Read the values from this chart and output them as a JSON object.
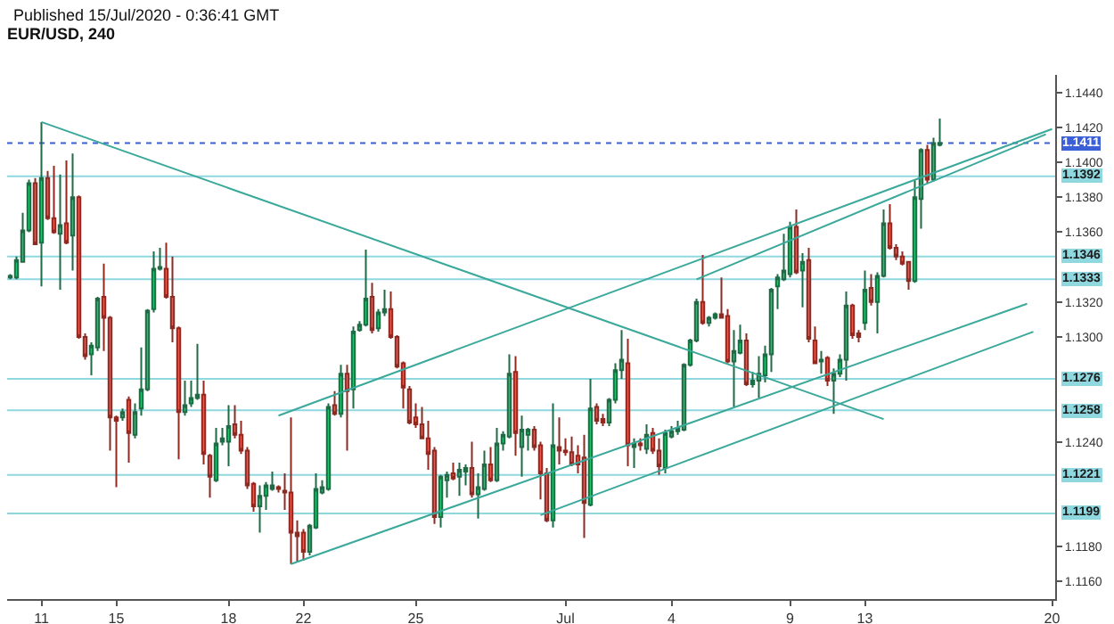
{
  "chart_data": {
    "type": "candlestick",
    "title": "Published 15/Jul/2020 - 0:36:41 GMT",
    "subtitle": "EUR/USD, 240",
    "categories": [
      null,
      null,
      null,
      null,
      null,
      "11",
      null,
      null,
      null,
      null,
      null,
      null,
      null,
      null,
      null,
      null,
      null,
      "15",
      null,
      null,
      null,
      null,
      null,
      null,
      null,
      null,
      null,
      null,
      null,
      null,
      null,
      null,
      null,
      null,
      null,
      "18",
      null,
      null,
      null,
      null,
      null,
      null,
      null,
      null,
      null,
      null,
      null,
      "22",
      null,
      null,
      null,
      null,
      null,
      null,
      null,
      null,
      null,
      null,
      null,
      null,
      null,
      null,
      null,
      null,
      null,
      "25",
      null,
      null,
      null,
      null,
      null,
      null,
      null,
      null,
      null,
      null,
      null,
      null,
      null,
      null,
      null,
      null,
      null,
      null,
      null,
      null,
      null,
      null,
      null,
      "Jul",
      null,
      null,
      null,
      null,
      null,
      null,
      null,
      null,
      null,
      null,
      null,
      null,
      null,
      null,
      null,
      null,
      "4",
      null,
      null,
      null,
      null,
      null,
      null,
      null,
      null,
      null,
      null,
      null,
      null,
      null,
      null,
      null,
      null,
      null,
      null,
      "9",
      null,
      null,
      null,
      null,
      null,
      null,
      null,
      null,
      null,
      null,
      null,
      "13",
      null,
      null,
      null,
      null,
      null,
      null,
      null,
      null,
      null,
      null,
      null,
      null,
      null,
      null,
      null,
      null,
      null,
      null,
      null,
      null,
      null,
      null,
      null,
      null,
      null,
      null,
      null,
      null,
      null,
      "20"
    ],
    "ohlc": [
      [
        1.1334,
        1.1336,
        1.1333,
        1.1335
      ],
      [
        1.1334,
        1.1346,
        1.1333,
        1.1344
      ],
      [
        1.1343,
        1.1371,
        1.1343,
        1.1361
      ],
      [
        1.1361,
        1.139,
        1.136,
        1.1388
      ],
      [
        1.1388,
        1.1391,
        1.1353,
        1.1353
      ],
      [
        1.1354,
        1.1423,
        1.1329,
        1.1391
      ],
      [
        1.1391,
        1.1395,
        1.1367,
        1.1368
      ],
      [
        1.1368,
        1.1398,
        1.1359,
        1.136
      ],
      [
        1.1359,
        1.1393,
        1.1327,
        1.1364
      ],
      [
        1.1365,
        1.1401,
        1.1353,
        1.1354
      ],
      [
        1.1358,
        1.1405,
        1.1338,
        1.138
      ],
      [
        1.138,
        1.1381,
        1.1299,
        1.13
      ],
      [
        1.13,
        1.1302,
        1.1287,
        1.1289
      ],
      [
        1.129,
        1.1297,
        1.1278,
        1.1295
      ],
      [
        1.1294,
        1.1323,
        1.1292,
        1.1322
      ],
      [
        1.1323,
        1.1342,
        1.1292,
        1.1311
      ],
      [
        1.1311,
        1.1312,
        1.1235,
        1.1254
      ],
      [
        1.1254,
        1.1255,
        1.1214,
        1.1252
      ],
      [
        1.1254,
        1.1259,
        1.1252,
        1.1257
      ],
      [
        1.1264,
        1.1266,
        1.1228,
        1.1245
      ],
      [
        1.1244,
        1.1262,
        1.1242,
        1.1257
      ],
      [
        1.1259,
        1.1294,
        1.1255,
        1.127
      ],
      [
        1.127,
        1.1316,
        1.1269,
        1.1315
      ],
      [
        1.1316,
        1.1349,
        1.1314,
        1.1339
      ],
      [
        1.1339,
        1.1351,
        1.1338,
        1.134
      ],
      [
        1.1339,
        1.1354,
        1.1322,
        1.1323
      ],
      [
        1.1323,
        1.1346,
        1.1297,
        1.1305
      ],
      [
        1.1305,
        1.1306,
        1.123,
        1.1257
      ],
      [
        1.1257,
        1.1275,
        1.1255,
        1.1261
      ],
      [
        1.1262,
        1.1275,
        1.126,
        1.1265
      ],
      [
        1.1265,
        1.1296,
        1.1264,
        1.1267
      ],
      [
        1.1267,
        1.1275,
        1.1227,
        1.1233
      ],
      [
        1.1232,
        1.1233,
        1.1208,
        1.122
      ],
      [
        1.1218,
        1.1248,
        1.1217,
        1.1239
      ],
      [
        1.124,
        1.1248,
        1.1238,
        1.1242
      ],
      [
        1.124,
        1.1261,
        1.1226,
        1.1249
      ],
      [
        1.125,
        1.1261,
        1.1242,
        1.1244
      ],
      [
        1.1244,
        1.1252,
        1.1233,
        1.1235
      ],
      [
        1.1235,
        1.1237,
        1.1213,
        1.1215
      ],
      [
        1.1216,
        1.1217,
        1.12,
        1.1203
      ],
      [
        1.1203,
        1.1215,
        1.1188,
        1.1209
      ],
      [
        1.1209,
        1.1217,
        1.1201,
        1.1215
      ],
      [
        1.1213,
        1.1223,
        1.1212,
        1.1215
      ],
      [
        1.1214,
        1.1215,
        1.1211,
        1.1213
      ],
      [
        1.1212,
        1.1222,
        1.1201,
        1.1211
      ],
      [
        1.1211,
        1.1254,
        1.117,
        1.1188
      ],
      [
        1.1188,
        1.1195,
        1.1171,
        1.1186
      ],
      [
        1.1188,
        1.119,
        1.1172,
        1.1177
      ],
      [
        1.1177,
        1.1193,
        1.1175,
        1.1192
      ],
      [
        1.1191,
        1.1222,
        1.119,
        1.1213
      ],
      [
        1.1211,
        1.1218,
        1.121,
        1.1214
      ],
      [
        1.1213,
        1.1262,
        1.1212,
        1.126
      ],
      [
        1.1261,
        1.1269,
        1.1255,
        1.1256
      ],
      [
        1.1256,
        1.1284,
        1.1254,
        1.1279
      ],
      [
        1.1279,
        1.1284,
        1.1235,
        1.1269
      ],
      [
        1.127,
        1.1306,
        1.1259,
        1.1303
      ],
      [
        1.1304,
        1.1309,
        1.1303,
        1.1307
      ],
      [
        1.1307,
        1.135,
        1.1306,
        1.1322
      ],
      [
        1.1323,
        1.1331,
        1.1302,
        1.1304
      ],
      [
        1.1305,
        1.1316,
        1.1303,
        1.1314
      ],
      [
        1.1314,
        1.1327,
        1.1312,
        1.1316
      ],
      [
        1.1316,
        1.1326,
        1.1299,
        1.13
      ],
      [
        1.13,
        1.1301,
        1.1282,
        1.1283
      ],
      [
        1.1285,
        1.1286,
        1.1259,
        1.1271
      ],
      [
        1.127,
        1.1272,
        1.125,
        1.1251
      ],
      [
        1.1254,
        1.1262,
        1.1248,
        1.125
      ],
      [
        1.125,
        1.126,
        1.1242,
        1.1242
      ],
      [
        1.1242,
        1.1252,
        1.1224,
        1.1233
      ],
      [
        1.1235,
        1.1237,
        1.1193,
        1.1197
      ],
      [
        1.1197,
        1.1221,
        1.1191,
        1.122
      ],
      [
        1.1218,
        1.1223,
        1.1208,
        1.1221
      ],
      [
        1.1222,
        1.1228,
        1.1218,
        1.1219
      ],
      [
        1.122,
        1.1228,
        1.1209,
        1.1224
      ],
      [
        1.1223,
        1.1227,
        1.1215,
        1.1225
      ],
      [
        1.1225,
        1.124,
        1.1208,
        1.121
      ],
      [
        1.121,
        1.1222,
        1.1196,
        1.1214
      ],
      [
        1.1213,
        1.1235,
        1.1212,
        1.1227
      ],
      [
        1.1227,
        1.1237,
        1.1217,
        1.1218
      ],
      [
        1.1218,
        1.1248,
        1.1217,
        1.1239
      ],
      [
        1.1239,
        1.1246,
        1.1235,
        1.1244
      ],
      [
        1.1243,
        1.129,
        1.1242,
        1.1279
      ],
      [
        1.128,
        1.1289,
        1.1232,
        1.1245
      ],
      [
        1.1237,
        1.1255,
        1.122,
        1.1247
      ],
      [
        1.1244,
        1.1248,
        1.1235,
        1.1247
      ],
      [
        1.1247,
        1.1249,
        1.1235,
        1.1237
      ],
      [
        1.1238,
        1.124,
        1.1207,
        1.1222
      ],
      [
        1.1222,
        1.1225,
        1.1194,
        1.1195
      ],
      [
        1.1195,
        1.1262,
        1.1191,
        1.1238
      ],
      [
        1.1237,
        1.1254,
        1.1227,
        1.1235
      ],
      [
        1.1235,
        1.1242,
        1.1232,
        1.1234
      ],
      [
        1.1234,
        1.1243,
        1.1226,
        1.1227
      ],
      [
        1.1232,
        1.1238,
        1.1222,
        1.1227
      ],
      [
        1.1231,
        1.1244,
        1.1185,
        1.1205
      ],
      [
        1.1204,
        1.1276,
        1.1203,
        1.1259
      ],
      [
        1.126,
        1.1262,
        1.125,
        1.1252
      ],
      [
        1.1253,
        1.1256,
        1.1249,
        1.1251
      ],
      [
        1.1251,
        1.1265,
        1.1249,
        1.1264
      ],
      [
        1.1264,
        1.1285,
        1.1262,
        1.1281
      ],
      [
        1.1281,
        1.1304,
        1.1276,
        1.1287
      ],
      [
        1.1285,
        1.1299,
        1.1226,
        1.1238
      ],
      [
        1.1237,
        1.1242,
        1.1225,
        1.1239
      ],
      [
        1.1239,
        1.1242,
        1.1235,
        1.1238
      ],
      [
        1.1236,
        1.125,
        1.1233,
        1.1244
      ],
      [
        1.1245,
        1.1248,
        1.1233,
        1.1235
      ],
      [
        1.1235,
        1.1242,
        1.1221,
        1.1226
      ],
      [
        1.1225,
        1.1247,
        1.1222,
        1.1245
      ],
      [
        1.1243,
        1.1249,
        1.1242,
        1.1246
      ],
      [
        1.1246,
        1.1252,
        1.1244,
        1.1248
      ],
      [
        1.1247,
        1.1285,
        1.1246,
        1.1284
      ],
      [
        1.1284,
        1.1299,
        1.1283,
        1.1298
      ],
      [
        1.1298,
        1.1322,
        1.1297,
        1.132
      ],
      [
        1.132,
        1.1347,
        1.1307,
        1.1308
      ],
      [
        1.1308,
        1.1312,
        1.1306,
        1.1311
      ],
      [
        1.1311,
        1.1314,
        1.131,
        1.1313
      ],
      [
        1.1313,
        1.1334,
        1.1311,
        1.1311
      ],
      [
        1.1312,
        1.1316,
        1.1285,
        1.1286
      ],
      [
        1.1286,
        1.1304,
        1.126,
        1.1292
      ],
      [
        1.1291,
        1.1307,
        1.129,
        1.1298
      ],
      [
        1.1298,
        1.1302,
        1.1272,
        1.1273
      ],
      [
        1.1273,
        1.128,
        1.1271,
        1.1275
      ],
      [
        1.1275,
        1.1289,
        1.1265,
        1.1279
      ],
      [
        1.1278,
        1.1295,
        1.1274,
        1.129
      ],
      [
        1.129,
        1.1328,
        1.128,
        1.1327
      ],
      [
        1.1329,
        1.1336,
        1.1316,
        1.1334
      ],
      [
        1.1333,
        1.1359,
        1.1332,
        1.1338
      ],
      [
        1.1336,
        1.1366,
        1.1334,
        1.1363
      ],
      [
        1.1363,
        1.1373,
        1.1336,
        1.1337
      ],
      [
        1.1338,
        1.1348,
        1.1317,
        1.1343
      ],
      [
        1.1344,
        1.1351,
        1.1297,
        1.1299
      ],
      [
        1.1298,
        1.1306,
        1.1285,
        1.1285
      ],
      [
        1.1286,
        1.1292,
        1.1279,
        1.1287
      ],
      [
        1.1288,
        1.1289,
        1.1272,
        1.1275
      ],
      [
        1.1275,
        1.1282,
        1.1256,
        1.1279
      ],
      [
        1.1279,
        1.129,
        1.1277,
        1.1287
      ],
      [
        1.1287,
        1.1326,
        1.1275,
        1.1318
      ],
      [
        1.1318,
        1.1319,
        1.1299,
        1.1301
      ],
      [
        1.1302,
        1.1304,
        1.1297,
        1.13
      ],
      [
        1.1308,
        1.1338,
        1.1304,
        1.1327
      ],
      [
        1.1328,
        1.1336,
        1.1318,
        1.132
      ],
      [
        1.132,
        1.1337,
        1.1302,
        1.1335
      ],
      [
        1.1335,
        1.1373,
        1.1334,
        1.1365
      ],
      [
        1.1365,
        1.1376,
        1.135,
        1.1351
      ],
      [
        1.1351,
        1.1353,
        1.1344,
        1.1346
      ],
      [
        1.1346,
        1.1349,
        1.1341,
        1.1342
      ],
      [
        1.1343,
        1.1343,
        1.1327,
        1.1332
      ],
      [
        1.1332,
        1.139,
        1.1331,
        1.138
      ],
      [
        1.1379,
        1.1408,
        1.1362,
        1.1407
      ],
      [
        1.1407,
        1.141,
        1.1388,
        1.139
      ],
      [
        1.139,
        1.1414,
        1.1389,
        1.1411
      ],
      [
        1.141,
        1.1425,
        1.1409,
        1.1411
      ],
      null,
      null,
      null,
      null,
      null,
      null,
      null,
      null,
      null,
      null,
      null,
      null,
      null,
      null,
      null,
      null,
      null,
      null
    ],
    "series": [
      {
        "type": "line",
        "color": "#3aa89a",
        "values": [
          null,
          null,
          null,
          null,
          null,
          1.1423,
          null,
          null,
          null,
          null,
          null,
          null,
          null,
          null,
          null,
          null,
          null,
          null,
          null,
          null,
          null,
          null,
          null,
          null,
          null,
          null,
          null,
          null,
          null,
          null,
          null,
          null,
          null,
          null,
          null,
          null,
          null,
          null,
          null,
          null,
          null,
          null,
          null,
          null,
          null,
          null,
          null,
          null,
          null,
          null,
          null,
          null,
          null,
          null,
          null,
          null,
          null,
          null,
          null,
          null,
          null,
          null,
          null,
          null,
          null,
          null,
          null,
          null,
          null,
          null,
          null,
          null,
          null,
          null,
          null,
          null,
          null,
          null,
          null,
          null,
          null,
          null,
          null,
          null,
          null,
          null,
          null,
          null,
          null,
          null,
          null,
          null,
          null,
          null,
          null,
          null,
          null,
          null,
          null,
          null,
          null,
          null,
          null,
          null,
          null,
          null,
          null,
          null,
          null,
          null,
          null,
          null,
          null,
          null,
          null,
          null,
          null,
          null,
          null,
          null,
          null,
          null,
          null,
          null,
          null,
          null,
          null,
          null,
          null,
          null,
          null,
          null,
          null,
          null,
          null,
          null,
          null,
          null,
          null,
          null,
          1.1253,
          null,
          null,
          null,
          null,
          null,
          null,
          null,
          null,
          null,
          null,
          null,
          null,
          null,
          null,
          null,
          null,
          null,
          null,
          null,
          null,
          null,
          null,
          null,
          null,
          null,
          null,
          null
        ]
      },
      {
        "type": "line",
        "color": "#3aa89a",
        "values": [
          null,
          null,
          null,
          null,
          null,
          null,
          null,
          null,
          null,
          null,
          null,
          null,
          null,
          null,
          null,
          null,
          null,
          null,
          null,
          null,
          null,
          null,
          null,
          null,
          null,
          null,
          null,
          null,
          null,
          null,
          null,
          null,
          null,
          null,
          null,
          null,
          null,
          null,
          null,
          null,
          null,
          null,
          null,
          1.1255,
          null,
          null,
          null,
          null,
          null,
          null,
          null,
          null,
          null,
          null,
          null,
          null,
          null,
          null,
          null,
          null,
          null,
          null,
          null,
          null,
          null,
          null,
          null,
          null,
          null,
          null,
          null,
          null,
          null,
          null,
          null,
          null,
          null,
          null,
          null,
          null,
          null,
          null,
          null,
          null,
          null,
          null,
          null,
          null,
          null,
          null,
          null,
          null,
          null,
          null,
          null,
          null,
          null,
          null,
          null,
          null,
          null,
          null,
          null,
          null,
          null,
          null,
          null,
          null,
          null,
          null,
          null,
          null,
          null,
          null,
          null,
          null,
          null,
          null,
          null,
          null,
          null,
          null,
          null,
          null,
          null,
          null,
          null,
          null,
          null,
          null,
          null,
          null,
          null,
          null,
          null,
          null,
          null,
          null,
          null,
          null,
          null,
          null,
          null,
          null,
          null,
          null,
          null,
          null,
          null,
          null,
          null,
          null,
          null,
          null,
          null,
          null,
          null,
          null,
          null,
          null,
          null,
          null,
          null,
          null,
          null,
          null,
          null,
          1.1419
        ]
      },
      {
        "type": "line",
        "color": "#3aa89a",
        "values": [
          null,
          null,
          null,
          null,
          null,
          null,
          null,
          null,
          null,
          null,
          null,
          null,
          null,
          null,
          null,
          null,
          null,
          null,
          null,
          null,
          null,
          null,
          null,
          null,
          null,
          null,
          null,
          null,
          null,
          null,
          null,
          null,
          null,
          null,
          null,
          null,
          null,
          null,
          null,
          null,
          null,
          null,
          null,
          null,
          null,
          null,
          null,
          null,
          null,
          null,
          null,
          null,
          null,
          null,
          null,
          null,
          null,
          null,
          null,
          null,
          null,
          null,
          null,
          null,
          null,
          null,
          null,
          null,
          null,
          null,
          null,
          null,
          null,
          null,
          null,
          null,
          null,
          null,
          null,
          null,
          null,
          null,
          null,
          null,
          null,
          null,
          null,
          null,
          null,
          null,
          null,
          null,
          null,
          null,
          null,
          null,
          null,
          null,
          null,
          null,
          null,
          null,
          null,
          null,
          null,
          null,
          null,
          null,
          null,
          null,
          1.1333,
          null,
          null,
          null,
          null,
          null,
          null,
          null,
          null,
          null,
          null,
          null,
          null,
          null,
          null,
          null,
          null,
          null,
          null,
          null,
          null,
          null,
          null,
          null,
          null,
          null,
          null,
          null,
          null,
          null,
          null,
          null,
          null,
          null,
          null,
          null,
          null,
          null,
          null,
          null,
          null,
          null,
          null,
          null,
          null,
          null,
          null,
          null,
          null,
          null,
          null,
          null,
          null,
          null,
          null,
          null,
          1.1416,
          null
        ]
      },
      {
        "type": "line",
        "color": "#3aa89a",
        "values": [
          null,
          null,
          null,
          null,
          null,
          null,
          null,
          null,
          null,
          null,
          null,
          null,
          null,
          null,
          null,
          null,
          null,
          null,
          null,
          null,
          null,
          null,
          null,
          null,
          null,
          null,
          null,
          null,
          null,
          null,
          null,
          null,
          null,
          null,
          null,
          null,
          null,
          null,
          null,
          null,
          null,
          null,
          null,
          null,
          null,
          1.117,
          null,
          null,
          null,
          null,
          null,
          null,
          null,
          null,
          null,
          null,
          null,
          null,
          null,
          null,
          null,
          null,
          null,
          null,
          null,
          null,
          null,
          null,
          null,
          null,
          null,
          null,
          null,
          null,
          null,
          null,
          null,
          null,
          null,
          null,
          null,
          null,
          null,
          null,
          null,
          null,
          null,
          null,
          null,
          null,
          null,
          null,
          null,
          null,
          null,
          null,
          null,
          null,
          null,
          null,
          null,
          null,
          null,
          null,
          null,
          null,
          null,
          null,
          null,
          null,
          null,
          null,
          null,
          null,
          null,
          null,
          null,
          null,
          null,
          null,
          null,
          null,
          null,
          null,
          null,
          null,
          null,
          null,
          null,
          null,
          null,
          null,
          null,
          null,
          null,
          null,
          null,
          null,
          null,
          null,
          null,
          null,
          null,
          null,
          null,
          null,
          null,
          null,
          null,
          null,
          null,
          null,
          null,
          null,
          null,
          null,
          null,
          null,
          null,
          null,
          null,
          null,
          null,
          1.1319,
          null,
          null,
          null,
          null
        ]
      },
      {
        "type": "line",
        "color": "#3aa89a",
        "values": [
          null,
          null,
          null,
          null,
          null,
          null,
          null,
          null,
          null,
          null,
          null,
          null,
          null,
          null,
          null,
          null,
          null,
          null,
          null,
          null,
          null,
          null,
          null,
          null,
          null,
          null,
          null,
          null,
          null,
          null,
          null,
          null,
          null,
          null,
          null,
          null,
          null,
          null,
          null,
          null,
          null,
          null,
          null,
          null,
          null,
          null,
          null,
          null,
          null,
          null,
          null,
          null,
          null,
          null,
          null,
          null,
          null,
          null,
          null,
          null,
          null,
          null,
          null,
          null,
          null,
          null,
          null,
          null,
          null,
          null,
          null,
          null,
          null,
          null,
          null,
          null,
          null,
          null,
          null,
          null,
          null,
          null,
          null,
          null,
          null,
          1.1198,
          null,
          null,
          null,
          null,
          null,
          null,
          null,
          null,
          null,
          null,
          null,
          null,
          null,
          null,
          null,
          null,
          null,
          null,
          null,
          null,
          null,
          null,
          null,
          null,
          null,
          null,
          null,
          null,
          null,
          null,
          null,
          null,
          null,
          null,
          null,
          null,
          null,
          null,
          null,
          null,
          null,
          null,
          null,
          null,
          null,
          null,
          null,
          null,
          null,
          null,
          null,
          null,
          null,
          null,
          null,
          null,
          null,
          null,
          null,
          null,
          null,
          null,
          null,
          null,
          null,
          null,
          null,
          null,
          null,
          null,
          null,
          null,
          null,
          null,
          null,
          null,
          null,
          null,
          1.1303,
          null,
          null,
          null
        ]
      }
    ],
    "ref_lines": [
      {
        "axis": "y",
        "value": 1.1411,
        "label": "1.1411",
        "color": "#3b5fd6",
        "line_style": "dotted"
      },
      {
        "axis": "y",
        "value": 1.1392,
        "label": "1.1392",
        "color": "#8fd8e0",
        "line_style": "solid"
      },
      {
        "axis": "y",
        "value": 1.1346,
        "label": "1.1346",
        "color": "#8fd8e0",
        "line_style": "solid"
      },
      {
        "axis": "y",
        "value": 1.1333,
        "label": "1.1333",
        "color": "#8fd8e0",
        "line_style": "solid"
      },
      {
        "axis": "y",
        "value": 1.1276,
        "label": "1.1276",
        "color": "#8fd8e0",
        "line_style": "solid"
      },
      {
        "axis": "y",
        "value": 1.1258,
        "label": "1.1258",
        "color": "#8fd8e0",
        "line_style": "solid"
      },
      {
        "axis": "y",
        "value": 1.1221,
        "label": "1.1221",
        "color": "#8fd8e0",
        "line_style": "solid"
      },
      {
        "axis": "y",
        "value": 1.1199,
        "label": "1.1199",
        "color": "#8fd8e0",
        "line_style": "solid"
      }
    ],
    "ylim": [
      1.115,
      1.145
    ],
    "yticks": [
      {
        "value": 1.144,
        "label": "1.1440"
      },
      {
        "value": 1.142,
        "label": "1.1420"
      },
      {
        "value": 1.14,
        "label": "1.1400"
      },
      {
        "value": 1.138,
        "label": "1.1380"
      },
      {
        "value": 1.136,
        "label": "1.1360"
      },
      {
        "value": 1.132,
        "label": "1.1320"
      },
      {
        "value": 1.13,
        "label": "1.1300"
      },
      {
        "value": 1.124,
        "label": "1.1240"
      },
      {
        "value": 1.118,
        "label": "1.1180"
      },
      {
        "value": 1.116,
        "label": "1.1160"
      }
    ],
    "grid": false
  }
}
